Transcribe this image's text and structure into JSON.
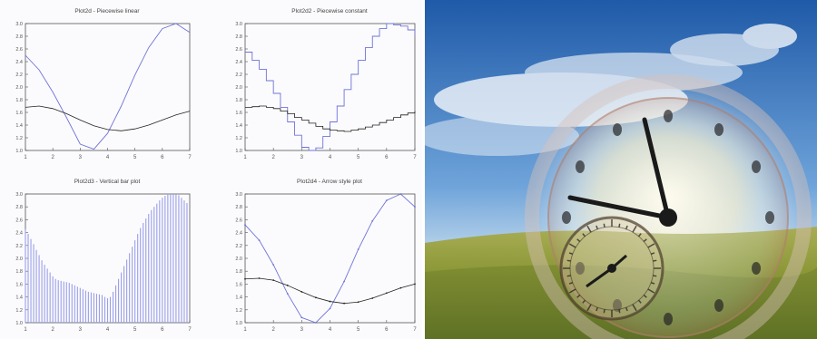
{
  "chart_data": [
    {
      "type": "line",
      "title": "Plot2d - Piecewise linear",
      "x": [
        1,
        1.5,
        2,
        2.5,
        3,
        3.5,
        4,
        4.5,
        5,
        5.5,
        6,
        6.5,
        7
      ],
      "series": [
        {
          "values": [
            2.5,
            2.27,
            1.92,
            1.52,
            1.1,
            1.02,
            1.27,
            1.7,
            2.19,
            2.62,
            2.92,
            3.0,
            2.86
          ]
        },
        {
          "values": [
            1.68,
            1.7,
            1.66,
            1.58,
            1.48,
            1.39,
            1.33,
            1.31,
            1.34,
            1.4,
            1.48,
            1.56,
            1.62
          ]
        }
      ],
      "xlim": [
        1,
        7
      ],
      "ylim": [
        1.0,
        3.0
      ],
      "xticks": [
        "1",
        "2",
        "3",
        "4",
        "5",
        "6",
        "7"
      ],
      "yticks": [
        "1.0",
        "1.2",
        "1.4",
        "1.6",
        "1.8",
        "2.0",
        "2.2",
        "2.4",
        "2.6",
        "2.8",
        "3.0"
      ]
    },
    {
      "type": "line",
      "title": "Plot2d2 - Piecewise constant",
      "x": [
        1,
        1.25,
        1.5,
        1.75,
        2,
        2.25,
        2.5,
        2.75,
        3,
        3.25,
        3.5,
        3.75,
        4,
        4.25,
        4.5,
        4.75,
        5,
        5.25,
        5.5,
        5.75,
        6,
        6.25,
        6.5,
        6.75,
        7
      ],
      "series": [
        {
          "values": [
            2.55,
            2.42,
            2.28,
            2.1,
            1.9,
            1.68,
            1.45,
            1.24,
            1.05,
            1.0,
            1.04,
            1.22,
            1.45,
            1.7,
            1.96,
            2.2,
            2.42,
            2.62,
            2.8,
            2.92,
            3.0,
            2.98,
            2.96,
            2.9,
            2.82
          ]
        },
        {
          "values": [
            1.68,
            1.69,
            1.7,
            1.68,
            1.66,
            1.62,
            1.58,
            1.52,
            1.48,
            1.43,
            1.38,
            1.34,
            1.32,
            1.31,
            1.3,
            1.32,
            1.34,
            1.37,
            1.4,
            1.44,
            1.48,
            1.52,
            1.56,
            1.59,
            1.62
          ]
        }
      ],
      "xlim": [
        1,
        7
      ],
      "ylim": [
        1.0,
        3.0
      ],
      "xticks": [
        "1",
        "2",
        "3",
        "4",
        "5",
        "6",
        "7"
      ],
      "yticks": [
        "1.0",
        "1.2",
        "1.4",
        "1.6",
        "1.8",
        "2.0",
        "2.2",
        "2.4",
        "2.6",
        "2.8",
        "3.0"
      ]
    },
    {
      "type": "bar",
      "title": "Plot2d3 - Vertical bar plot",
      "x": [
        1,
        1.1,
        1.2,
        1.3,
        1.4,
        1.5,
        1.6,
        1.7,
        1.8,
        1.9,
        2,
        2.1,
        2.2,
        2.3,
        2.4,
        2.5,
        2.6,
        2.7,
        2.8,
        2.9,
        3,
        3.1,
        3.2,
        3.3,
        3.4,
        3.5,
        3.6,
        3.7,
        3.8,
        3.9,
        4,
        4.1,
        4.2,
        4.3,
        4.4,
        4.5,
        4.6,
        4.7,
        4.8,
        4.9,
        5,
        5.1,
        5.2,
        5.3,
        5.4,
        5.5,
        5.6,
        5.7,
        5.8,
        5.9,
        6,
        6.1,
        6.2,
        6.3,
        6.4,
        6.5,
        6.6,
        6.7,
        6.8,
        6.9
      ],
      "values": [
        2.45,
        2.38,
        2.3,
        2.22,
        2.13,
        2.05,
        1.97,
        1.9,
        1.84,
        1.78,
        1.72,
        1.68,
        1.66,
        1.65,
        1.64,
        1.63,
        1.62,
        1.6,
        1.58,
        1.56,
        1.54,
        1.52,
        1.5,
        1.48,
        1.47,
        1.46,
        1.45,
        1.44,
        1.43,
        1.4,
        1.38,
        1.4,
        1.48,
        1.58,
        1.68,
        1.78,
        1.88,
        1.98,
        2.08,
        2.18,
        2.28,
        2.38,
        2.47,
        2.55,
        2.62,
        2.69,
        2.75,
        2.8,
        2.85,
        2.9,
        2.94,
        2.97,
        3.0,
        3.0,
        3.0,
        3.0,
        2.98,
        2.94,
        2.9,
        2.86
      ],
      "xlim": [
        1,
        7
      ],
      "ylim": [
        1.0,
        3.0
      ],
      "xticks": [
        "1",
        "2",
        "3",
        "4",
        "5",
        "6",
        "7"
      ],
      "yticks": [
        "1.0",
        "1.2",
        "1.4",
        "1.6",
        "1.8",
        "2.0",
        "2.2",
        "2.4",
        "2.6",
        "2.8",
        "3.0"
      ]
    },
    {
      "type": "line",
      "title": "Plot2d4 - Arrow style plot",
      "x": [
        1,
        1.5,
        2,
        2.5,
        3,
        3.5,
        4,
        4.5,
        5,
        5.5,
        6,
        6.5,
        7
      ],
      "series": [
        {
          "values": [
            2.52,
            2.28,
            1.9,
            1.45,
            1.08,
            1.0,
            1.22,
            1.64,
            2.14,
            2.58,
            2.9,
            3.0,
            2.8
          ]
        },
        {
          "values": [
            1.68,
            1.69,
            1.66,
            1.58,
            1.48,
            1.39,
            1.33,
            1.3,
            1.32,
            1.38,
            1.46,
            1.54,
            1.6
          ]
        }
      ],
      "xlim": [
        1,
        7
      ],
      "ylim": [
        1.0,
        3.0
      ],
      "xticks": [
        "1",
        "2",
        "3",
        "4",
        "5",
        "6",
        "7"
      ],
      "yticks": [
        "1.0",
        "1.2",
        "1.4",
        "1.6",
        "1.8",
        "2.0",
        "2.2",
        "2.4",
        "2.6",
        "2.8",
        "3.0"
      ]
    }
  ],
  "photo": {
    "subject": "clock-over-meadow",
    "colors": {
      "sky_top": "#1f5aa8",
      "sky_mid": "#6fa4da",
      "glow": "#fff8d8",
      "grass_top": "#9aa24a",
      "grass_bottom": "#5b6e22",
      "clock_hands": "#1a1a1a"
    },
    "icons": [
      "clock-face",
      "compass-dial",
      "cloud"
    ]
  },
  "style": {
    "blue_series": "#6f73d8",
    "black_series": "#222222",
    "axis": "#555555",
    "bar": "#9a9fe8"
  }
}
